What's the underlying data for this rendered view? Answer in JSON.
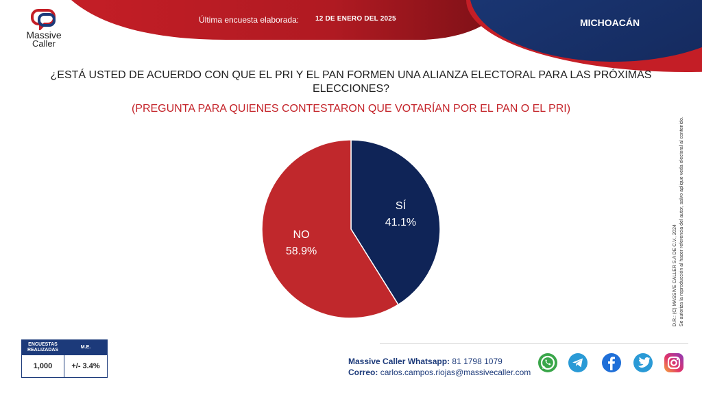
{
  "brand": {
    "line1": "Massive",
    "line2": "Caller"
  },
  "header": {
    "survey_label": "Última encuesta elaborada:",
    "survey_date": "12 DE ENERO DEL 2025",
    "region": "MICHOACÁN"
  },
  "question": "¿ESTÁ USTED DE ACUERDO CON QUE EL PRI Y EL PAN FORMEN UNA ALIANZA ELECTORAL PARA LAS PRÓXIMAS ELECCIONES?",
  "subquestion": "(PREGUNTA PARA QUIENES CONTESTARON QUE VOTARÍAN POR EL PAN O EL PRI)",
  "chart_data": {
    "type": "pie",
    "slices": [
      {
        "label": "SÍ",
        "value": 41.1,
        "display": "41.1%",
        "color": "#0f2457"
      },
      {
        "label": "NO",
        "value": 58.9,
        "display": "58.9%",
        "color": "#c0282c"
      }
    ]
  },
  "copyright": {
    "line1": "D.R.: (C) MASSIVE CALLER S.A DE C.V., 2024",
    "line2": "Se autoriza la reproducción al hacer referencia del autor, salvo aplique veda electoral al contenido."
  },
  "stats": {
    "header_surveys": "ENCUESTAS REALIZADAS",
    "header_me": "M.E.",
    "surveys": "1,000",
    "me": "+/- 3.4%"
  },
  "contact": {
    "whatsapp_label": "Massive Caller Whatsapp:",
    "whatsapp_number": "81 1798 1079",
    "email_label": "Correo:",
    "email": "carlos.campos.riojas@massivecaller.com"
  },
  "colors": {
    "red": "#c0282c",
    "navy": "#1c3a7a",
    "dark_navy": "#0f2457"
  },
  "social_icons": [
    "whatsapp-icon",
    "telegram-icon",
    "facebook-icon",
    "twitter-icon",
    "instagram-icon"
  ]
}
